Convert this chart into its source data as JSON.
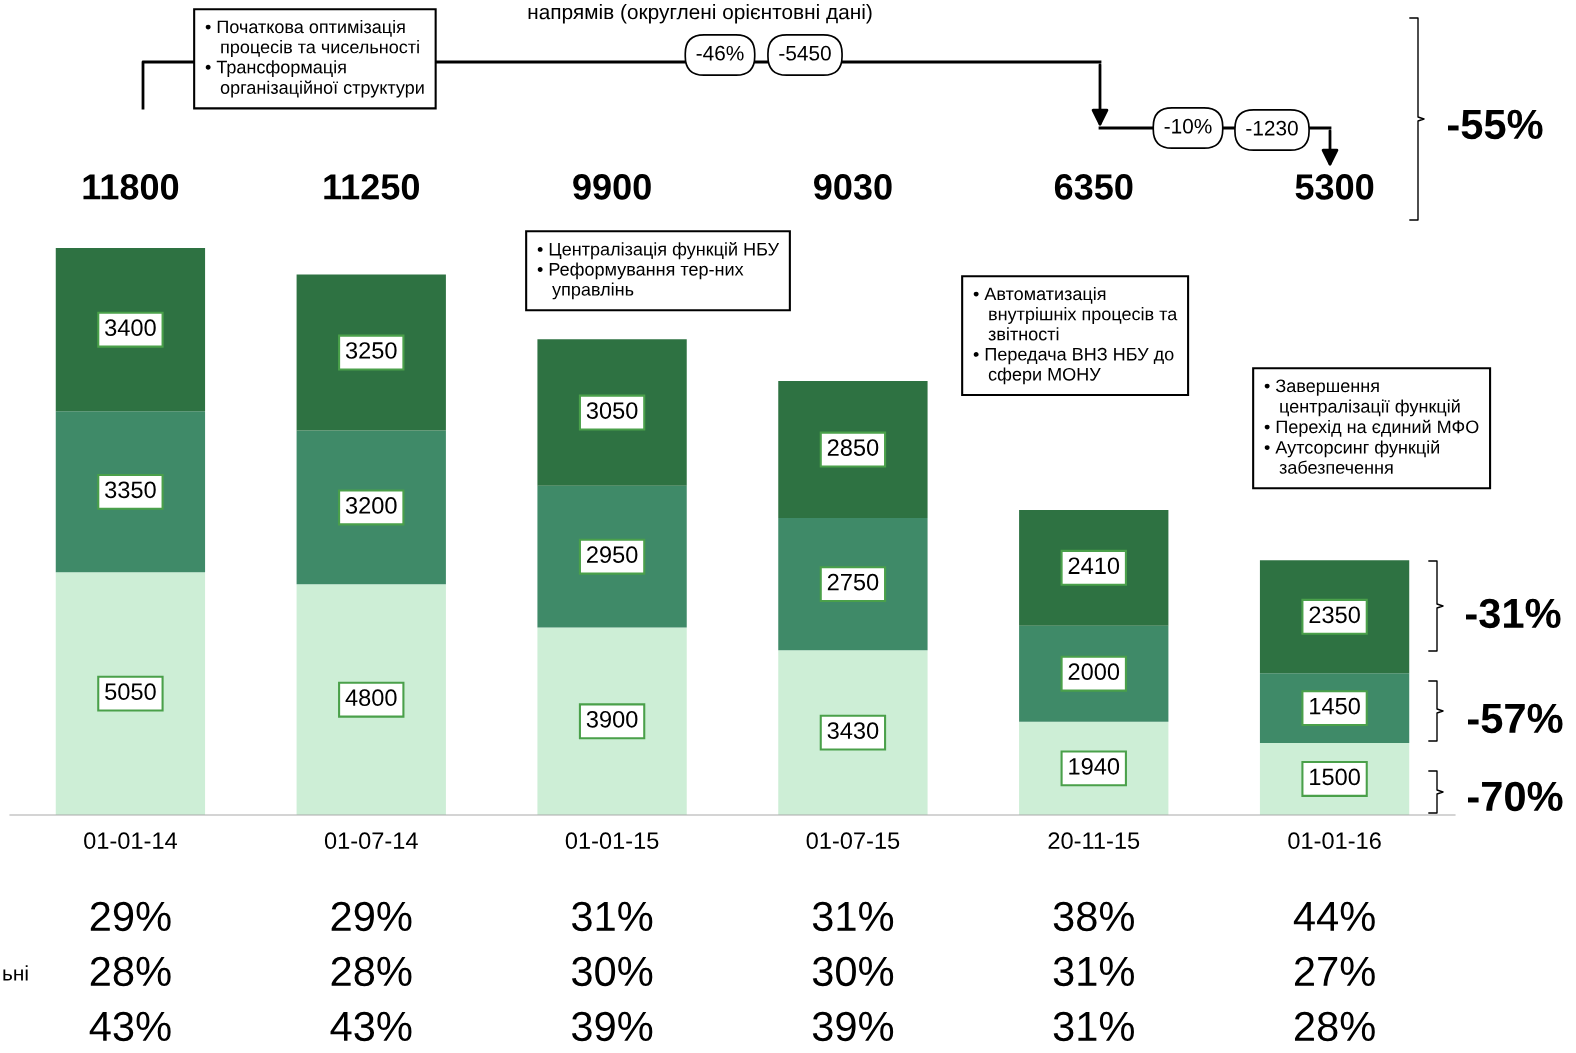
{
  "chart_data": {
    "type": "bar",
    "stacked": true,
    "data_labels": true,
    "title": "напрямів (округлені орієнтовні дані)",
    "categories": [
      "01-01-14",
      "01-07-14",
      "01-01-15",
      "01-07-15",
      "20-11-15",
      "01-01-16"
    ],
    "series": [
      {
        "color": "#cdeed6",
        "values": [
          5050,
          4800,
          3900,
          3430,
          1940,
          1500
        ]
      },
      {
        "color": "#3f8a68",
        "values": [
          3350,
          3200,
          2950,
          2750,
          2000,
          1450
        ]
      },
      {
        "color": "#2e7242",
        "values": [
          3400,
          3250,
          3050,
          2850,
          2410,
          2350
        ]
      }
    ],
    "annotations": [
      "• Початкова оптимізація\n   процесів та чисельності\n• Трансформація\n   організаційної структури",
      "• Централізація функцій НБУ\n• Реформування тер-них\n   управлінь",
      "• Автоматизація\n   внутрішніх процесів та\n   звітності\n• Передача ВНЗ НБУ до\n   сфери МОНУ",
      "• Завершення\n   централізації функцій\n• Перехід на єдиний МФО\n• Аутсорсинг функцій\n   забезпечення",
      "-46%",
      "-5450",
      "-10%",
      "-1230",
      "-55%",
      "-31%",
      "-57%",
      "-70%",
      "ьні",
      "29%",
      "29%",
      "31%",
      "31%",
      "38%",
      "44%",
      "28%",
      "28%",
      "30%",
      "30%",
      "31%",
      "27%",
      "43%",
      "43%",
      "39%",
      "39%",
      "31%",
      "28%",
      "11800",
      "11250",
      "9900",
      "9030",
      "6350",
      "5300"
    ]
  }
}
